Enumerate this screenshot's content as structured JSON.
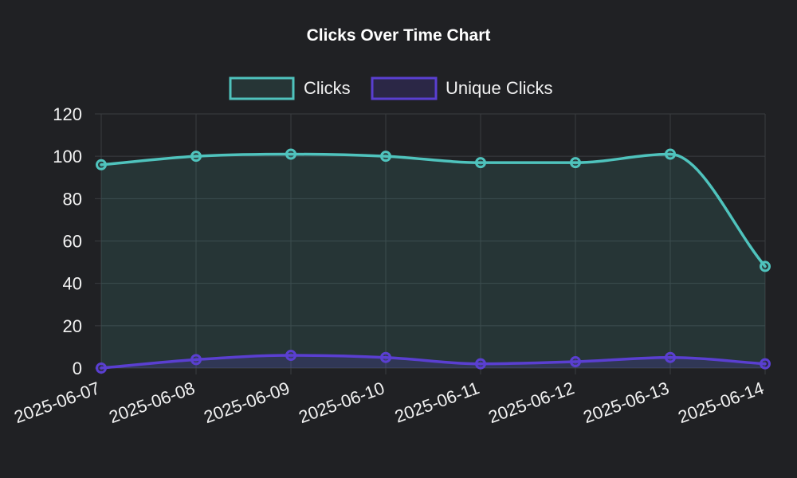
{
  "chart_data": {
    "type": "line",
    "title": "Clicks Over Time Chart",
    "categories": [
      "2025-06-07",
      "2025-06-08",
      "2025-06-09",
      "2025-06-10",
      "2025-06-11",
      "2025-06-12",
      "2025-06-13",
      "2025-06-14"
    ],
    "ylim": [
      0,
      120
    ],
    "yticks": [
      0,
      20,
      40,
      60,
      80,
      100,
      120
    ],
    "grid": true,
    "legend_position": "top-center",
    "series": [
      {
        "name": "Clicks",
        "values": [
          96,
          100,
          101,
          100,
          97,
          97,
          101,
          48
        ],
        "color": "#4fc3bd",
        "fill": "rgba(79, 195, 189, 0.12)"
      },
      {
        "name": "Unique Clicks",
        "values": [
          0,
          4,
          6,
          5,
          2,
          3,
          5,
          2
        ],
        "color": "#5a3fd1",
        "fill": "rgba(90, 63, 209, 0.20)"
      }
    ]
  }
}
